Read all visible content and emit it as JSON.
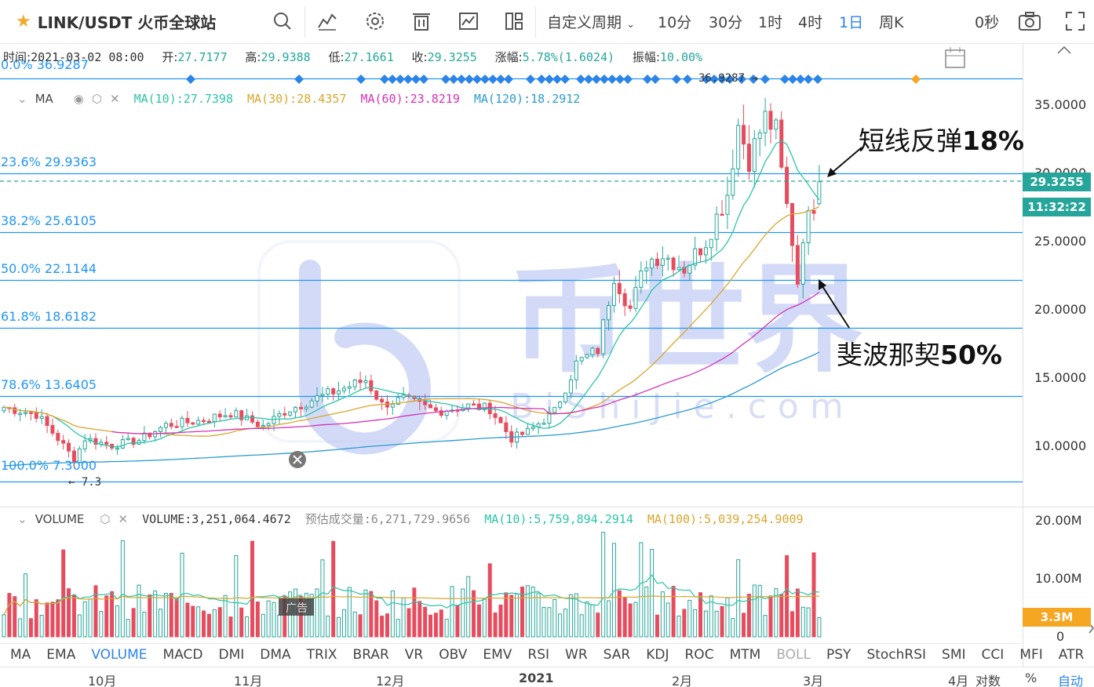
{
  "toolbar": {
    "symbol": "LINK/USDT 火币全球站",
    "custom_period": "自定义周期",
    "periods": [
      "10分",
      "30分",
      "1时",
      "4时",
      "1日",
      "周K"
    ],
    "active_period": "1日",
    "countdown": "0秒"
  },
  "info": {
    "time_k": "时间:",
    "time_v": "2021-03-02 08:00",
    "open_k": "开:",
    "open_v": "27.7177",
    "high_k": "高:",
    "high_v": "29.9388",
    "low_k": "低:",
    "low_v": "27.1661",
    "close_k": "收:",
    "close_v": "29.3255",
    "chg_k": "涨幅:",
    "chg_v": "5.78%(1.6024)",
    "amp_k": "振幅:",
    "amp_v": "10.00%"
  },
  "ma": {
    "label": "MA",
    "ma10": "MA(10):27.7398",
    "ma30": "MA(30):28.4357",
    "ma60": "MA(60):23.8219",
    "ma120": "MA(120):18.2912",
    "colors": {
      "ma10": "#2bc4a7",
      "ma30": "#d9a62e",
      "ma60": "#d433b8",
      "ma120": "#2a9bd0"
    }
  },
  "fib": [
    {
      "label": "0.0% 36.9287",
      "value": 36.9287
    },
    {
      "label": "23.6% 29.9363",
      "value": 29.9363
    },
    {
      "label": "38.2% 25.6105",
      "value": 25.6105
    },
    {
      "label": "50.0% 22.1144",
      "value": 22.1144
    },
    {
      "label": "61.8% 18.6182",
      "value": 18.6182
    },
    {
      "label": "78.6% 13.6405",
      "value": 13.6405
    },
    {
      "label": "100.0% 7.3000",
      "value": 7.3
    }
  ],
  "high_marker": "36.9287",
  "low_marker": "7.3",
  "price_axis": [
    "35.0000",
    "30.0000",
    "25.0000",
    "20.0000",
    "15.0000",
    "10.0000"
  ],
  "last_price": "29.3255",
  "countdown_tag": "11:32:22",
  "volume": {
    "label": "VOLUME",
    "value": "VOLUME:3,251,064.4672",
    "estimate": "预估成交量:6,271,729.9656",
    "ma10": "MA(10):5,759,894.2914",
    "ma100": "MA(100):5,039,254.9009",
    "axis": [
      "20.00M",
      "10.00M",
      "0"
    ],
    "tag": "3.3M",
    "ad_label": "广告"
  },
  "tabs": [
    "MA",
    "EMA",
    "VOLUME",
    "MACD",
    "DMI",
    "DMA",
    "TRIX",
    "BRAR",
    "VR",
    "OBV",
    "EMV",
    "RSI",
    "WR",
    "SAR",
    "KDJ",
    "ROC",
    "MTM",
    "BOLL",
    "PSY",
    "StochRSI",
    "SMI",
    "CCI",
    "MFI",
    "ATR"
  ],
  "active_tab": "VOLUME",
  "time_axis": [
    "10月",
    "11月",
    "12月",
    "2021",
    "2月",
    "3月",
    "4月"
  ],
  "axis_options": {
    "log": "对数",
    "pct": "%",
    "auto": "自动"
  },
  "annotations": {
    "rebound_text": "短线反弹",
    "rebound_pct": "18%",
    "fib_text": "斐波那契",
    "fib_pct": "50%"
  },
  "watermark": {
    "name": "币世界",
    "domain": "BiShiJie.com"
  },
  "colors": {
    "up": "#26a69a",
    "down": "#e64c5e",
    "fib_line": "#2196f3",
    "accent": "#2b84e8"
  }
}
